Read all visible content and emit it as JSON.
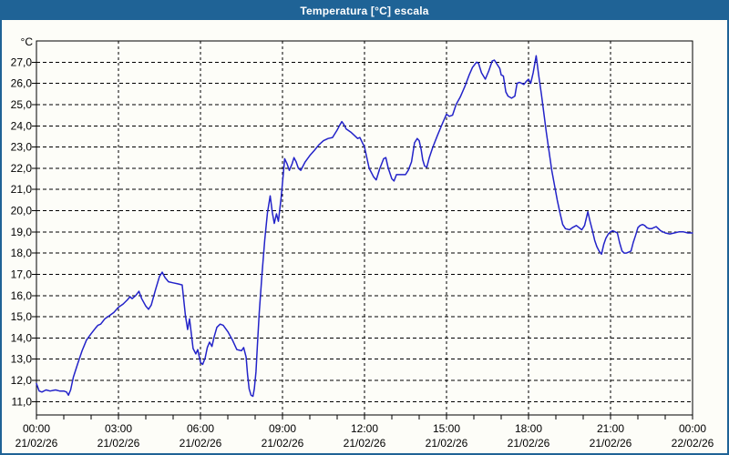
{
  "window": {
    "title": "Temperatura [°C] escala",
    "colors": {
      "title_bar": "#1F6396",
      "border": "#1F6396",
      "background": "#FDFDF8",
      "line": "#2323C9",
      "grid": "#000000",
      "text": "#000000"
    }
  },
  "chart_data": {
    "type": "line",
    "title": "Temperatura [°C] escala",
    "unit_label": "°C",
    "grid": {
      "horizontal": "dashed",
      "vertical": "dashed"
    },
    "legend": "none",
    "x_axis": {
      "range_hours": [
        0,
        24
      ],
      "minor_tick_every_hours": 1,
      "major_ticks": [
        {
          "h": 0,
          "time": "00:00",
          "date": "21/02/26"
        },
        {
          "h": 3,
          "time": "03:00",
          "date": "21/02/26"
        },
        {
          "h": 6,
          "time": "06:00",
          "date": "21/02/26"
        },
        {
          "h": 9,
          "time": "09:00",
          "date": "21/02/26"
        },
        {
          "h": 12,
          "time": "12:00",
          "date": "21/02/26"
        },
        {
          "h": 15,
          "time": "15:00",
          "date": "21/02/26"
        },
        {
          "h": 18,
          "time": "18:00",
          "date": "21/02/26"
        },
        {
          "h": 21,
          "time": "21:00",
          "date": "21/02/26"
        },
        {
          "h": 24,
          "time": "00:00",
          "date": "22/02/26"
        }
      ]
    },
    "y_axis": {
      "min": 10.37,
      "max": 28.0,
      "ticks": [
        {
          "v": 27,
          "label": "27,0"
        },
        {
          "v": 26,
          "label": "26,0"
        },
        {
          "v": 25,
          "label": "25,0"
        },
        {
          "v": 24,
          "label": "24,0"
        },
        {
          "v": 23,
          "label": "23,0"
        },
        {
          "v": 22,
          "label": "22,0"
        },
        {
          "v": 21,
          "label": "21,0"
        },
        {
          "v": 20,
          "label": "20,0"
        },
        {
          "v": 19,
          "label": "19,0"
        },
        {
          "v": 18,
          "label": "18,0"
        },
        {
          "v": 17,
          "label": "17,0"
        },
        {
          "v": 16,
          "label": "16,0"
        },
        {
          "v": 15,
          "label": "15,0"
        },
        {
          "v": 14,
          "label": "14,0"
        },
        {
          "v": 13,
          "label": "13,0"
        },
        {
          "v": 12,
          "label": "12,0"
        },
        {
          "v": 11,
          "label": "11,0"
        }
      ]
    },
    "series": [
      {
        "name": "Temperatura",
        "color": "#2323C9",
        "points_hours_temp": [
          [
            0.0,
            11.85
          ],
          [
            0.1,
            11.5
          ],
          [
            0.2,
            11.45
          ],
          [
            0.35,
            11.55
          ],
          [
            0.5,
            11.5
          ],
          [
            0.7,
            11.55
          ],
          [
            0.85,
            11.5
          ],
          [
            1.0,
            11.5
          ],
          [
            1.1,
            11.45
          ],
          [
            1.17,
            11.3
          ],
          [
            1.25,
            11.55
          ],
          [
            1.35,
            12.15
          ],
          [
            1.5,
            12.75
          ],
          [
            1.67,
            13.4
          ],
          [
            1.83,
            13.9
          ],
          [
            2.0,
            14.2
          ],
          [
            2.15,
            14.45
          ],
          [
            2.25,
            14.6
          ],
          [
            2.35,
            14.65
          ],
          [
            2.5,
            14.9
          ],
          [
            2.67,
            15.05
          ],
          [
            2.83,
            15.2
          ],
          [
            3.0,
            15.45
          ],
          [
            3.17,
            15.6
          ],
          [
            3.33,
            15.8
          ],
          [
            3.42,
            15.95
          ],
          [
            3.5,
            15.85
          ],
          [
            3.63,
            16.0
          ],
          [
            3.75,
            16.2
          ],
          [
            3.85,
            15.85
          ],
          [
            4.0,
            15.5
          ],
          [
            4.1,
            15.35
          ],
          [
            4.2,
            15.55
          ],
          [
            4.35,
            16.25
          ],
          [
            4.5,
            16.9
          ],
          [
            4.6,
            17.1
          ],
          [
            4.7,
            16.85
          ],
          [
            4.83,
            16.65
          ],
          [
            5.0,
            16.6
          ],
          [
            5.17,
            16.55
          ],
          [
            5.33,
            16.5
          ],
          [
            5.45,
            15.05
          ],
          [
            5.53,
            14.4
          ],
          [
            5.6,
            14.9
          ],
          [
            5.73,
            13.5
          ],
          [
            5.83,
            13.25
          ],
          [
            5.9,
            13.45
          ],
          [
            6.0,
            12.85
          ],
          [
            6.08,
            12.75
          ],
          [
            6.17,
            13.05
          ],
          [
            6.25,
            13.55
          ],
          [
            6.33,
            13.8
          ],
          [
            6.42,
            13.6
          ],
          [
            6.5,
            14.05
          ],
          [
            6.6,
            14.5
          ],
          [
            6.72,
            14.65
          ],
          [
            6.83,
            14.6
          ],
          [
            7.0,
            14.3
          ],
          [
            7.17,
            13.9
          ],
          [
            7.33,
            13.45
          ],
          [
            7.5,
            13.4
          ],
          [
            7.58,
            13.55
          ],
          [
            7.67,
            13.1
          ],
          [
            7.72,
            12.3
          ],
          [
            7.78,
            11.6
          ],
          [
            7.85,
            11.3
          ],
          [
            7.92,
            11.25
          ],
          [
            7.97,
            11.6
          ],
          [
            8.03,
            12.4
          ],
          [
            8.08,
            13.6
          ],
          [
            8.15,
            15.2
          ],
          [
            8.25,
            17.0
          ],
          [
            8.35,
            18.6
          ],
          [
            8.45,
            19.9
          ],
          [
            8.55,
            20.7
          ],
          [
            8.63,
            19.9
          ],
          [
            8.7,
            19.4
          ],
          [
            8.78,
            19.85
          ],
          [
            8.85,
            19.5
          ],
          [
            8.95,
            20.6
          ],
          [
            9.08,
            22.45
          ],
          [
            9.17,
            22.2
          ],
          [
            9.25,
            21.9
          ],
          [
            9.35,
            22.2
          ],
          [
            9.42,
            22.5
          ],
          [
            9.5,
            22.3
          ],
          [
            9.58,
            22.0
          ],
          [
            9.67,
            21.9
          ],
          [
            9.83,
            22.3
          ],
          [
            10.0,
            22.6
          ],
          [
            10.17,
            22.85
          ],
          [
            10.33,
            23.1
          ],
          [
            10.5,
            23.3
          ],
          [
            10.67,
            23.4
          ],
          [
            10.83,
            23.45
          ],
          [
            11.0,
            23.8
          ],
          [
            11.08,
            24.0
          ],
          [
            11.17,
            24.2
          ],
          [
            11.25,
            24.05
          ],
          [
            11.33,
            23.85
          ],
          [
            11.5,
            23.7
          ],
          [
            11.67,
            23.5
          ],
          [
            11.75,
            23.4
          ],
          [
            11.83,
            23.45
          ],
          [
            12.0,
            23.0
          ],
          [
            12.17,
            22.0
          ],
          [
            12.33,
            21.6
          ],
          [
            12.43,
            21.45
          ],
          [
            12.55,
            21.95
          ],
          [
            12.7,
            22.45
          ],
          [
            12.78,
            22.5
          ],
          [
            12.87,
            22.0
          ],
          [
            13.0,
            21.5
          ],
          [
            13.08,
            21.4
          ],
          [
            13.17,
            21.7
          ],
          [
            13.33,
            21.7
          ],
          [
            13.5,
            21.7
          ],
          [
            13.6,
            21.9
          ],
          [
            13.72,
            22.3
          ],
          [
            13.83,
            23.2
          ],
          [
            13.93,
            23.4
          ],
          [
            14.0,
            23.3
          ],
          [
            14.07,
            22.9
          ],
          [
            14.13,
            22.4
          ],
          [
            14.2,
            22.1
          ],
          [
            14.28,
            22.05
          ],
          [
            14.37,
            22.5
          ],
          [
            14.5,
            23.0
          ],
          [
            14.67,
            23.55
          ],
          [
            14.83,
            24.05
          ],
          [
            15.0,
            24.55
          ],
          [
            15.1,
            24.45
          ],
          [
            15.22,
            24.5
          ],
          [
            15.35,
            25.0
          ],
          [
            15.5,
            25.35
          ],
          [
            15.67,
            25.85
          ],
          [
            15.83,
            26.4
          ],
          [
            15.95,
            26.75
          ],
          [
            16.1,
            27.0
          ],
          [
            16.17,
            26.95
          ],
          [
            16.28,
            26.5
          ],
          [
            16.42,
            26.2
          ],
          [
            16.55,
            26.6
          ],
          [
            16.67,
            27.05
          ],
          [
            16.75,
            27.1
          ],
          [
            16.85,
            26.9
          ],
          [
            16.95,
            26.7
          ],
          [
            17.0,
            26.4
          ],
          [
            17.08,
            26.35
          ],
          [
            17.17,
            25.6
          ],
          [
            17.25,
            25.4
          ],
          [
            17.38,
            25.3
          ],
          [
            17.5,
            25.4
          ],
          [
            17.58,
            26.0
          ],
          [
            17.67,
            26.05
          ],
          [
            17.75,
            26.0
          ],
          [
            17.83,
            25.95
          ],
          [
            17.92,
            26.1
          ],
          [
            18.0,
            26.2
          ],
          [
            18.08,
            26.0
          ],
          [
            18.17,
            26.5
          ],
          [
            18.28,
            27.3
          ],
          [
            18.37,
            26.4
          ],
          [
            18.47,
            25.5
          ],
          [
            18.55,
            24.7
          ],
          [
            18.65,
            23.7
          ],
          [
            18.75,
            22.8
          ],
          [
            18.85,
            21.9
          ],
          [
            18.95,
            21.2
          ],
          [
            19.05,
            20.5
          ],
          [
            19.15,
            19.9
          ],
          [
            19.25,
            19.35
          ],
          [
            19.35,
            19.15
          ],
          [
            19.5,
            19.1
          ],
          [
            19.6,
            19.2
          ],
          [
            19.75,
            19.3
          ],
          [
            19.85,
            19.2
          ],
          [
            19.95,
            19.1
          ],
          [
            20.05,
            19.3
          ],
          [
            20.17,
            19.95
          ],
          [
            20.25,
            19.5
          ],
          [
            20.33,
            19.1
          ],
          [
            20.42,
            18.6
          ],
          [
            20.5,
            18.3
          ],
          [
            20.58,
            18.1
          ],
          [
            20.67,
            17.95
          ],
          [
            20.75,
            18.4
          ],
          [
            20.83,
            18.7
          ],
          [
            20.92,
            18.9
          ],
          [
            21.0,
            19.0
          ],
          [
            21.08,
            19.05
          ],
          [
            21.17,
            19.0
          ],
          [
            21.25,
            18.95
          ],
          [
            21.33,
            18.5
          ],
          [
            21.42,
            18.1
          ],
          [
            21.5,
            18.0
          ],
          [
            21.58,
            18.0
          ],
          [
            21.67,
            18.05
          ],
          [
            21.75,
            18.1
          ],
          [
            21.83,
            18.5
          ],
          [
            21.92,
            18.85
          ],
          [
            22.0,
            19.2
          ],
          [
            22.08,
            19.3
          ],
          [
            22.17,
            19.35
          ],
          [
            22.25,
            19.3
          ],
          [
            22.33,
            19.2
          ],
          [
            22.42,
            19.15
          ],
          [
            22.5,
            19.15
          ],
          [
            22.58,
            19.2
          ],
          [
            22.67,
            19.25
          ],
          [
            22.75,
            19.15
          ],
          [
            22.83,
            19.05
          ],
          [
            22.92,
            19.0
          ],
          [
            23.0,
            18.95
          ],
          [
            23.17,
            18.9
          ],
          [
            23.33,
            18.95
          ],
          [
            23.5,
            19.0
          ],
          [
            23.67,
            19.0
          ],
          [
            23.83,
            18.95
          ],
          [
            24.0,
            18.95
          ]
        ]
      }
    ]
  }
}
